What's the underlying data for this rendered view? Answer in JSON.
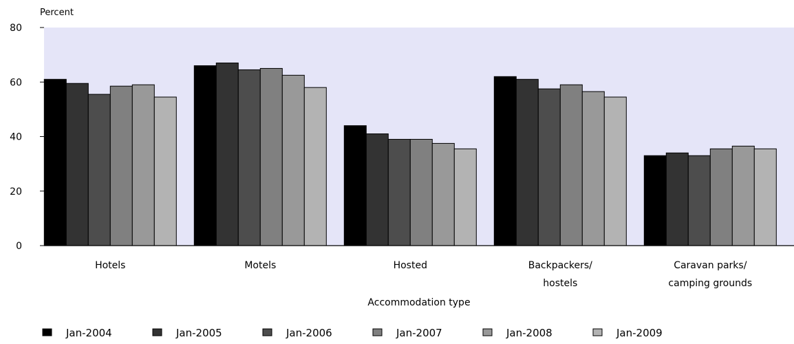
{
  "chart_data": {
    "type": "bar",
    "title": "",
    "ylabel": "Percent",
    "xlabel": "Accommodation type",
    "ylim": [
      0,
      80
    ],
    "yticks": [
      "0",
      "20",
      "40",
      "60",
      "80"
    ],
    "grid": false,
    "legend_position": "bottom",
    "plot_background": "#e5e5f8",
    "categories": [
      [
        "Hotels"
      ],
      [
        "Motels"
      ],
      [
        "Hosted"
      ],
      [
        "Backpackers/",
        "hostels"
      ],
      [
        "Caravan parks/",
        "camping grounds"
      ]
    ],
    "series": [
      {
        "name": "Jan-2004",
        "color": "#000000",
        "values": [
          61,
          66,
          44,
          62,
          33
        ]
      },
      {
        "name": "Jan-2005",
        "color": "#333333",
        "values": [
          59.5,
          67,
          41,
          61,
          34
        ]
      },
      {
        "name": "Jan-2006",
        "color": "#4d4d4d",
        "values": [
          55.5,
          64.5,
          39,
          57.5,
          33
        ]
      },
      {
        "name": "Jan-2007",
        "color": "#808080",
        "values": [
          58.5,
          65,
          39,
          59,
          35.5
        ]
      },
      {
        "name": "Jan-2008",
        "color": "#999999",
        "values": [
          59,
          62.5,
          37.5,
          56.5,
          36.5
        ]
      },
      {
        "name": "Jan-2009",
        "color": "#b3b3b3",
        "values": [
          54.5,
          58,
          35.5,
          54.5,
          35.5
        ]
      }
    ]
  }
}
